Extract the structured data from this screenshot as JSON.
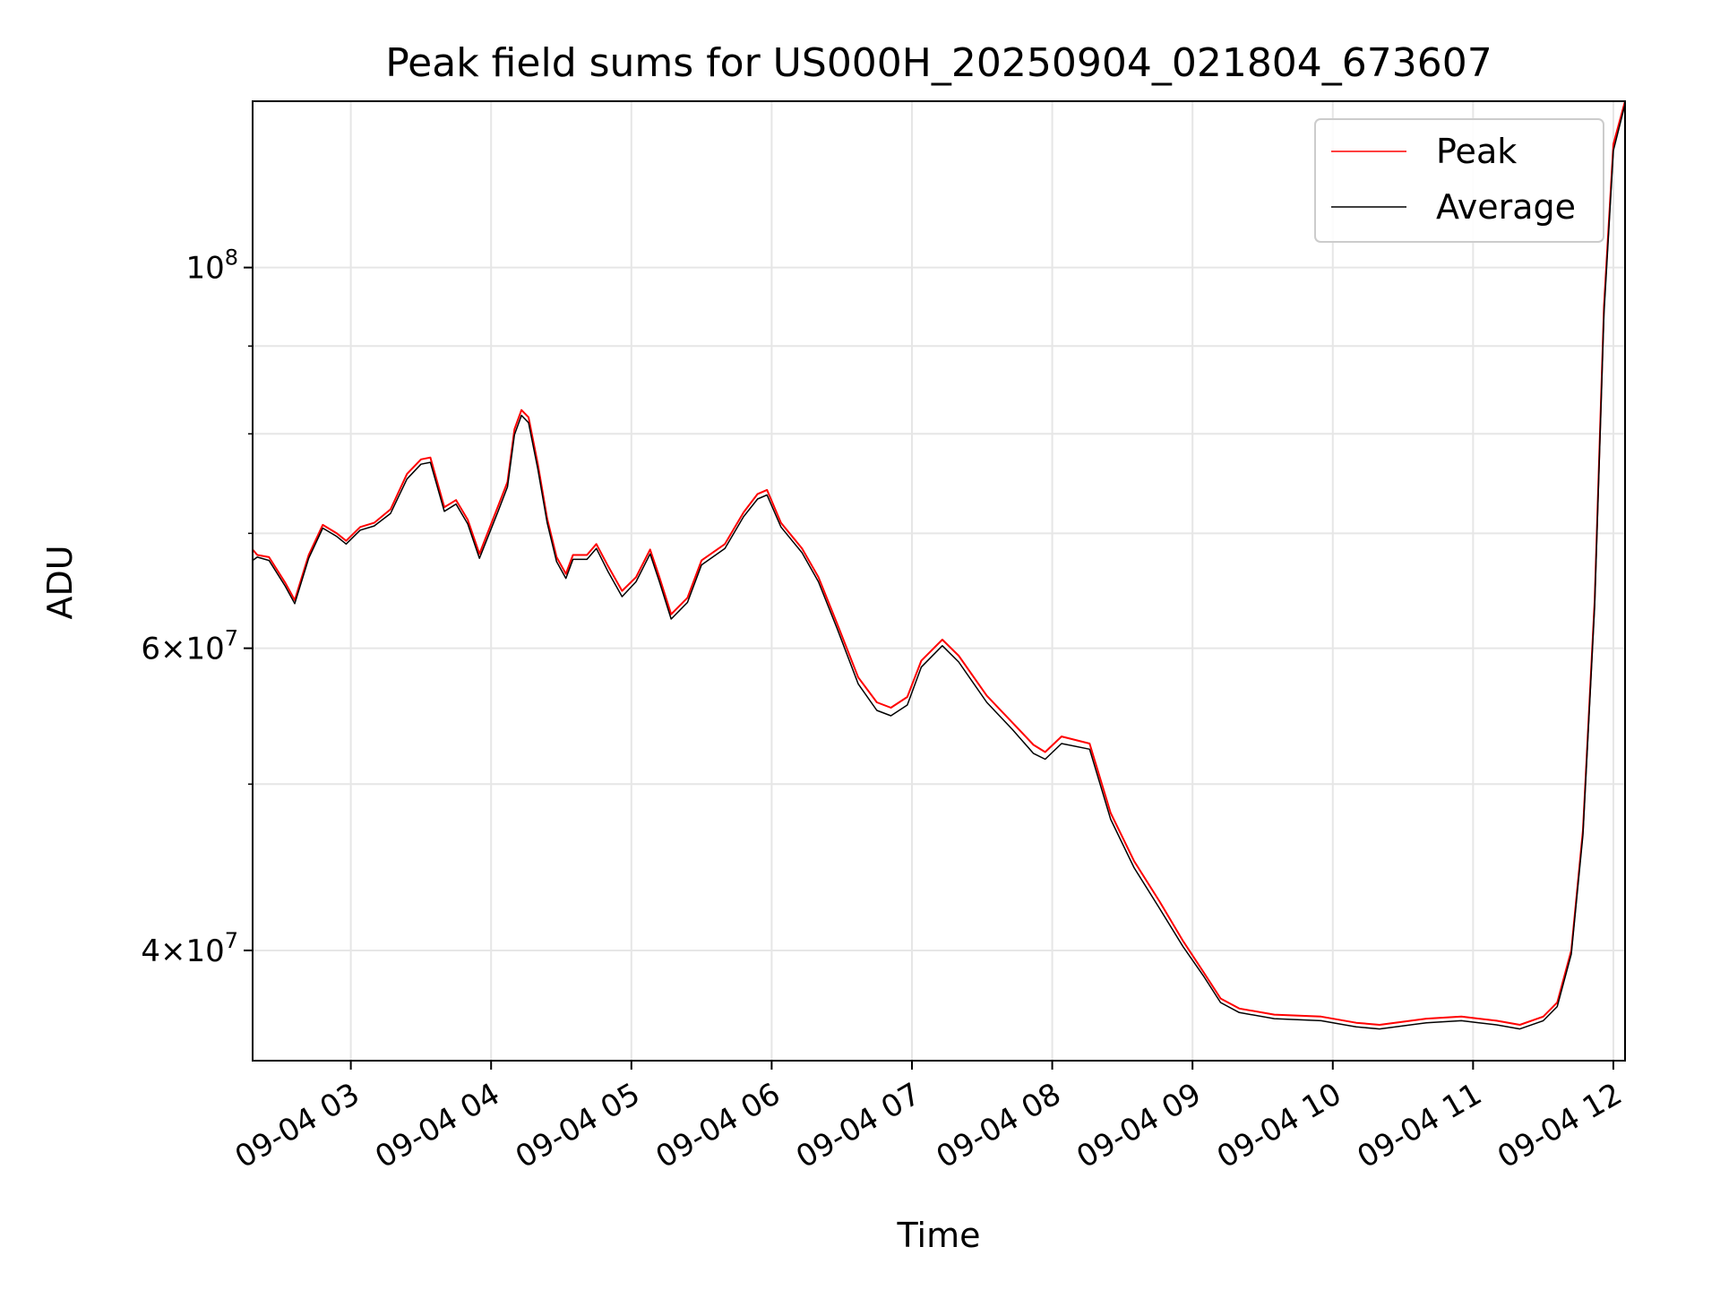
{
  "chart_data": {
    "type": "line",
    "title": "Peak field sums for US000H_20250904_021804_673607",
    "xlabel": "Time",
    "ylabel": "ADU",
    "yscale": "log",
    "grid": true,
    "legend_placement": "top-right",
    "xlim": [
      "2025-09-04T02:18",
      "2025-09-04T12:05"
    ],
    "ylim": [
      34500000,
      125000000
    ],
    "x_ticks": [
      {
        "x": "2025-09-04T03:00",
        "label": "09-04 03"
      },
      {
        "x": "2025-09-04T04:00",
        "label": "09-04 04"
      },
      {
        "x": "2025-09-04T05:00",
        "label": "09-04 05"
      },
      {
        "x": "2025-09-04T06:00",
        "label": "09-04 06"
      },
      {
        "x": "2025-09-04T07:00",
        "label": "09-04 07"
      },
      {
        "x": "2025-09-04T08:00",
        "label": "09-04 08"
      },
      {
        "x": "2025-09-04T09:00",
        "label": "09-04 09"
      },
      {
        "x": "2025-09-04T10:00",
        "label": "09-04 10"
      },
      {
        "x": "2025-09-04T11:00",
        "label": "09-04 11"
      },
      {
        "x": "2025-09-04T12:00",
        "label": "09-04 12"
      }
    ],
    "y_major_ticks": [
      {
        "y": 40000000,
        "mantissa": "4",
        "base": "10",
        "exp": "7"
      },
      {
        "y": 60000000,
        "mantissa": "6",
        "base": "10",
        "exp": "7"
      },
      {
        "y": 100000000,
        "mantissa": "",
        "base": "10",
        "exp": "8"
      }
    ],
    "y_minor_ticks": [
      50000000,
      70000000,
      80000000,
      90000000
    ],
    "series": [
      {
        "name": "Peak",
        "color": "#ff0000",
        "points": [
          [
            "2025-09-04T02:18",
            68500000
          ],
          [
            "2025-09-04T02:20",
            68000000
          ],
          [
            "2025-09-04T02:25",
            67800000
          ],
          [
            "2025-09-04T02:32",
            65500000
          ],
          [
            "2025-09-04T02:36",
            64000000
          ],
          [
            "2025-09-04T02:42",
            68000000
          ],
          [
            "2025-09-04T02:48",
            70800000
          ],
          [
            "2025-09-04T02:54",
            70000000
          ],
          [
            "2025-09-04T02:58",
            69300000
          ],
          [
            "2025-09-04T03:04",
            70600000
          ],
          [
            "2025-09-04T03:10",
            71000000
          ],
          [
            "2025-09-04T03:17",
            72300000
          ],
          [
            "2025-09-04T03:24",
            75800000
          ],
          [
            "2025-09-04T03:30",
            77300000
          ],
          [
            "2025-09-04T03:34",
            77500000
          ],
          [
            "2025-09-04T03:40",
            72500000
          ],
          [
            "2025-09-04T03:45",
            73200000
          ],
          [
            "2025-09-04T03:50",
            71300000
          ],
          [
            "2025-09-04T03:55",
            68100000
          ],
          [
            "2025-09-04T04:03",
            72600000
          ],
          [
            "2025-09-04T04:07",
            75000000
          ],
          [
            "2025-09-04T04:10",
            80500000
          ],
          [
            "2025-09-04T04:13",
            82600000
          ],
          [
            "2025-09-04T04:16",
            81800000
          ],
          [
            "2025-09-04T04:20",
            76800000
          ],
          [
            "2025-09-04T04:24",
            71400000
          ],
          [
            "2025-09-04T04:28",
            67800000
          ],
          [
            "2025-09-04T04:32",
            66300000
          ],
          [
            "2025-09-04T04:35",
            68000000
          ],
          [
            "2025-09-04T04:41",
            68000000
          ],
          [
            "2025-09-04T04:45",
            69000000
          ],
          [
            "2025-09-04T04:50",
            67000000
          ],
          [
            "2025-09-04T04:56",
            64800000
          ],
          [
            "2025-09-04T05:02",
            66000000
          ],
          [
            "2025-09-04T05:08",
            68500000
          ],
          [
            "2025-09-04T05:12",
            66000000
          ],
          [
            "2025-09-04T05:17",
            62800000
          ],
          [
            "2025-09-04T05:24",
            64200000
          ],
          [
            "2025-09-04T05:30",
            67500000
          ],
          [
            "2025-09-04T05:40",
            69000000
          ],
          [
            "2025-09-04T05:48",
            72000000
          ],
          [
            "2025-09-04T05:54",
            73800000
          ],
          [
            "2025-09-04T05:58",
            74200000
          ],
          [
            "2025-09-04T06:04",
            71000000
          ],
          [
            "2025-09-04T06:13",
            68600000
          ],
          [
            "2025-09-04T06:20",
            66000000
          ],
          [
            "2025-09-04T06:28",
            62000000
          ],
          [
            "2025-09-04T06:37",
            57700000
          ],
          [
            "2025-09-04T06:45",
            55800000
          ],
          [
            "2025-09-04T06:51",
            55400000
          ],
          [
            "2025-09-04T06:58",
            56200000
          ],
          [
            "2025-09-04T07:04",
            59000000
          ],
          [
            "2025-09-04T07:13",
            60700000
          ],
          [
            "2025-09-04T07:20",
            59400000
          ],
          [
            "2025-09-04T07:32",
            56300000
          ],
          [
            "2025-09-04T07:43",
            54300000
          ],
          [
            "2025-09-04T07:52",
            52700000
          ],
          [
            "2025-09-04T07:57",
            52200000
          ],
          [
            "2025-09-04T08:04",
            53300000
          ],
          [
            "2025-09-04T08:16",
            52800000
          ],
          [
            "2025-09-04T08:25",
            48100000
          ],
          [
            "2025-09-04T08:35",
            45100000
          ],
          [
            "2025-09-04T08:46",
            42700000
          ],
          [
            "2025-09-04T08:56",
            40500000
          ],
          [
            "2025-09-04T09:05",
            38800000
          ],
          [
            "2025-09-04T09:12",
            37500000
          ],
          [
            "2025-09-04T09:20",
            37000000
          ],
          [
            "2025-09-04T09:35",
            36700000
          ],
          [
            "2025-09-04T09:55",
            36600000
          ],
          [
            "2025-09-04T10:10",
            36300000
          ],
          [
            "2025-09-04T10:20",
            36200000
          ],
          [
            "2025-09-04T10:40",
            36500000
          ],
          [
            "2025-09-04T10:55",
            36600000
          ],
          [
            "2025-09-04T11:10",
            36400000
          ],
          [
            "2025-09-04T11:20",
            36200000
          ],
          [
            "2025-09-04T11:30",
            36600000
          ],
          [
            "2025-09-04T11:36",
            37300000
          ],
          [
            "2025-09-04T11:42",
            40000000
          ],
          [
            "2025-09-04T11:47",
            47000000
          ],
          [
            "2025-09-04T11:52",
            64000000
          ],
          [
            "2025-09-04T11:56",
            95000000
          ],
          [
            "2025-09-04T12:00",
            118000000
          ],
          [
            "2025-09-04T12:05",
            125000000
          ]
        ]
      },
      {
        "name": "Average",
        "color": "#000000",
        "points": [
          [
            "2025-09-04T02:18",
            67500000
          ],
          [
            "2025-09-04T02:20",
            67800000
          ],
          [
            "2025-09-04T02:25",
            67500000
          ],
          [
            "2025-09-04T02:32",
            65200000
          ],
          [
            "2025-09-04T02:36",
            63700000
          ],
          [
            "2025-09-04T02:42",
            67700000
          ],
          [
            "2025-09-04T02:48",
            70500000
          ],
          [
            "2025-09-04T02:54",
            69700000
          ],
          [
            "2025-09-04T02:58",
            69000000
          ],
          [
            "2025-09-04T03:04",
            70300000
          ],
          [
            "2025-09-04T03:10",
            70700000
          ],
          [
            "2025-09-04T03:17",
            71900000
          ],
          [
            "2025-09-04T03:24",
            75300000
          ],
          [
            "2025-09-04T03:30",
            76800000
          ],
          [
            "2025-09-04T03:34",
            77000000
          ],
          [
            "2025-09-04T03:40",
            72100000
          ],
          [
            "2025-09-04T03:45",
            72800000
          ],
          [
            "2025-09-04T03:50",
            70900000
          ],
          [
            "2025-09-04T03:55",
            67700000
          ],
          [
            "2025-09-04T04:03",
            72100000
          ],
          [
            "2025-09-04T04:07",
            74500000
          ],
          [
            "2025-09-04T04:10",
            79900000
          ],
          [
            "2025-09-04T04:13",
            82000000
          ],
          [
            "2025-09-04T04:16",
            81200000
          ],
          [
            "2025-09-04T04:20",
            76300000
          ],
          [
            "2025-09-04T04:24",
            71000000
          ],
          [
            "2025-09-04T04:28",
            67400000
          ],
          [
            "2025-09-04T04:32",
            65900000
          ],
          [
            "2025-09-04T04:35",
            67600000
          ],
          [
            "2025-09-04T04:41",
            67600000
          ],
          [
            "2025-09-04T04:45",
            68600000
          ],
          [
            "2025-09-04T04:50",
            66500000
          ],
          [
            "2025-09-04T04:56",
            64300000
          ],
          [
            "2025-09-04T05:02",
            65600000
          ],
          [
            "2025-09-04T05:08",
            68100000
          ],
          [
            "2025-09-04T05:12",
            65600000
          ],
          [
            "2025-09-04T05:17",
            62400000
          ],
          [
            "2025-09-04T05:24",
            63800000
          ],
          [
            "2025-09-04T05:30",
            67100000
          ],
          [
            "2025-09-04T05:40",
            68600000
          ],
          [
            "2025-09-04T05:48",
            71600000
          ],
          [
            "2025-09-04T05:54",
            73300000
          ],
          [
            "2025-09-04T05:58",
            73700000
          ],
          [
            "2025-09-04T06:04",
            70600000
          ],
          [
            "2025-09-04T06:13",
            68200000
          ],
          [
            "2025-09-04T06:20",
            65600000
          ],
          [
            "2025-09-04T06:28",
            61600000
          ],
          [
            "2025-09-04T06:37",
            57200000
          ],
          [
            "2025-09-04T06:45",
            55200000
          ],
          [
            "2025-09-04T06:51",
            54800000
          ],
          [
            "2025-09-04T06:58",
            55600000
          ],
          [
            "2025-09-04T07:04",
            58500000
          ],
          [
            "2025-09-04T07:13",
            60200000
          ],
          [
            "2025-09-04T07:20",
            58900000
          ],
          [
            "2025-09-04T07:32",
            55800000
          ],
          [
            "2025-09-04T07:43",
            53800000
          ],
          [
            "2025-09-04T07:52",
            52100000
          ],
          [
            "2025-09-04T07:57",
            51700000
          ],
          [
            "2025-09-04T08:04",
            52800000
          ],
          [
            "2025-09-04T08:16",
            52400000
          ],
          [
            "2025-09-04T08:25",
            47700000
          ],
          [
            "2025-09-04T08:35",
            44700000
          ],
          [
            "2025-09-04T08:46",
            42300000
          ],
          [
            "2025-09-04T08:56",
            40200000
          ],
          [
            "2025-09-04T09:05",
            38600000
          ],
          [
            "2025-09-04T09:12",
            37300000
          ],
          [
            "2025-09-04T09:20",
            36800000
          ],
          [
            "2025-09-04T09:35",
            36500000
          ],
          [
            "2025-09-04T09:55",
            36400000
          ],
          [
            "2025-09-04T10:10",
            36100000
          ],
          [
            "2025-09-04T10:20",
            36000000
          ],
          [
            "2025-09-04T10:40",
            36300000
          ],
          [
            "2025-09-04T10:55",
            36400000
          ],
          [
            "2025-09-04T11:10",
            36200000
          ],
          [
            "2025-09-04T11:20",
            36000000
          ],
          [
            "2025-09-04T11:30",
            36400000
          ],
          [
            "2025-09-04T11:36",
            37100000
          ],
          [
            "2025-09-04T11:42",
            39800000
          ],
          [
            "2025-09-04T11:47",
            46700000
          ],
          [
            "2025-09-04T11:52",
            63500000
          ],
          [
            "2025-09-04T11:56",
            94000000
          ],
          [
            "2025-09-04T12:00",
            117000000
          ],
          [
            "2025-09-04T12:05",
            124500000
          ]
        ]
      }
    ]
  }
}
